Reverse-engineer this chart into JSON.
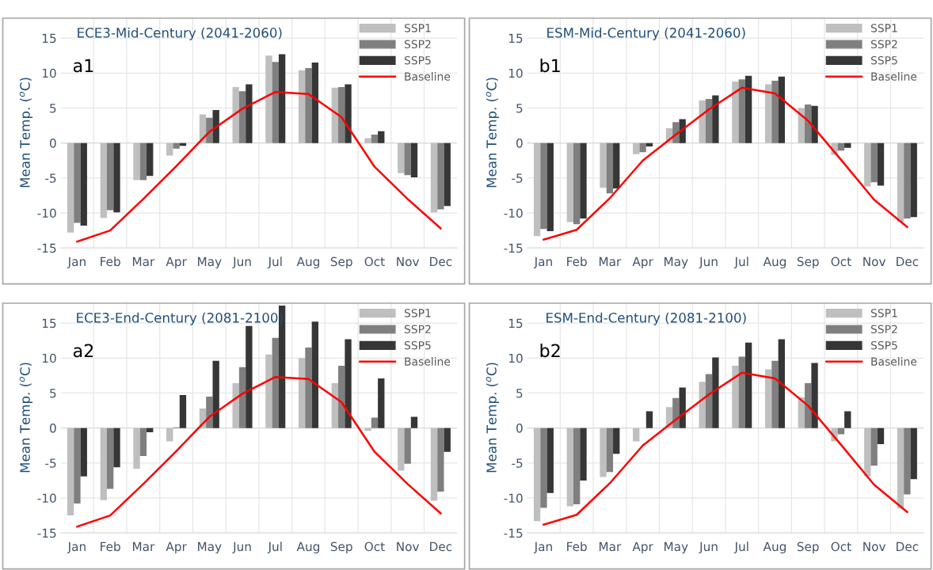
{
  "chart_data": [
    {
      "type": "bar",
      "title": "ECE3-Mid-Century (2041-2060)",
      "ylabel": "Mean Temp. ($^{o}$C)",
      "annotations": [
        "a1"
      ],
      "categories": [
        "Jan",
        "Feb",
        "Mar",
        "Apr",
        "May",
        "Jun",
        "Jul",
        "Aug",
        "Sep",
        "Oct",
        "Nov",
        "Dec"
      ],
      "ylim": [
        -15,
        18
      ],
      "yticks": [
        -15,
        -10,
        -5,
        0,
        5,
        10,
        15
      ],
      "grid": true,
      "legend": "top right",
      "series": [
        {
          "name": "SSP1",
          "color": "#bfbfbf",
          "values": [
            -12.8,
            -10.7,
            -5.3,
            -1.8,
            4.1,
            8.0,
            12.5,
            10.4,
            7.9,
            0.7,
            -4.3,
            -9.9
          ]
        },
        {
          "name": "SSP2",
          "color": "#7f7f7f",
          "values": [
            -11.4,
            -9.6,
            -5.3,
            -0.8,
            3.6,
            7.4,
            11.6,
            10.7,
            8.0,
            1.2,
            -4.6,
            -9.5
          ]
        },
        {
          "name": "SSP5",
          "color": "#363636",
          "values": [
            -11.8,
            -9.9,
            -4.7,
            -0.4,
            4.7,
            8.4,
            12.7,
            11.5,
            8.4,
            1.7,
            -4.9,
            -9.0
          ]
        },
        {
          "name": "Baseline",
          "type": "line",
          "color": "#ff0000",
          "values": [
            -14.1,
            -12.5,
            -8.0,
            -3.3,
            1.6,
            4.9,
            7.3,
            7.0,
            3.7,
            -3.4,
            -8.0,
            -12.2
          ]
        }
      ]
    },
    {
      "type": "bar",
      "title": "ESM-Mid-Century (2041-2060)",
      "ylabel": "Mean Temp. ($^{o}$C)",
      "annotations": [
        "b1"
      ],
      "categories": [
        "Jan",
        "Feb",
        "Mar",
        "Apr",
        "May",
        "Jun",
        "Jul",
        "Aug",
        "Sep",
        "Oct",
        "Nov",
        "Dec"
      ],
      "ylim": [
        -15,
        18
      ],
      "yticks": [
        -15,
        -10,
        -5,
        0,
        5,
        10,
        15
      ],
      "grid": true,
      "legend": "top right",
      "series": [
        {
          "name": "SSP1",
          "color": "#bfbfbf",
          "values": [
            -13.3,
            -11.3,
            -6.4,
            -1.6,
            2.1,
            6.1,
            8.8,
            8.4,
            5.0,
            -1.7,
            -6.2,
            -11.3
          ]
        },
        {
          "name": "SSP2",
          "color": "#7f7f7f",
          "values": [
            -12.3,
            -11.6,
            -7.2,
            -1.3,
            3.0,
            6.3,
            9.1,
            8.9,
            5.5,
            -1.1,
            -5.6,
            -10.8
          ]
        },
        {
          "name": "SSP5",
          "color": "#363636",
          "values": [
            -12.6,
            -10.8,
            -6.5,
            -0.5,
            3.4,
            6.8,
            9.6,
            9.5,
            5.3,
            -0.7,
            -6.1,
            -10.6
          ]
        },
        {
          "name": "Baseline",
          "type": "line",
          "color": "#ff0000",
          "values": [
            -13.8,
            -12.4,
            -7.9,
            -2.5,
            1.2,
            4.8,
            7.9,
            7.1,
            3.2,
            -2.4,
            -8.1,
            -12.0
          ]
        }
      ]
    },
    {
      "type": "bar",
      "title": "ECE3-End-Century (2081-2100)",
      "ylabel": "Mean Temp. ($^{o}$C)",
      "annotations": [
        "a2"
      ],
      "categories": [
        "Jan",
        "Feb",
        "Mar",
        "Apr",
        "May",
        "Jun",
        "Jul",
        "Aug",
        "Sep",
        "Oct",
        "Nov",
        "Dec"
      ],
      "ylim": [
        -15,
        18
      ],
      "yticks": [
        -15,
        -10,
        -5,
        0,
        5,
        10,
        15
      ],
      "grid": true,
      "legend": "top right",
      "series": [
        {
          "name": "SSP1",
          "color": "#bfbfbf",
          "values": [
            -12.5,
            -10.3,
            -5.8,
            -1.9,
            2.8,
            6.4,
            10.5,
            10.0,
            6.4,
            -0.4,
            -6.1,
            -10.4
          ]
        },
        {
          "name": "SSP2",
          "color": "#7f7f7f",
          "values": [
            -10.8,
            -8.7,
            -4.0,
            0.1,
            4.5,
            8.7,
            12.9,
            11.5,
            8.9,
            1.5,
            -5.1,
            -9.1
          ]
        },
        {
          "name": "SSP5",
          "color": "#363636",
          "values": [
            -6.9,
            -5.6,
            -0.6,
            4.7,
            9.6,
            14.6,
            17.5,
            15.2,
            12.7,
            7.1,
            1.6,
            -3.4
          ]
        },
        {
          "name": "Baseline",
          "type": "line",
          "color": "#ff0000",
          "values": [
            -14.1,
            -12.5,
            -8.0,
            -3.3,
            1.6,
            4.9,
            7.3,
            7.0,
            3.7,
            -3.4,
            -8.0,
            -12.2
          ]
        }
      ]
    },
    {
      "type": "bar",
      "title": "ESM-End-Century (2081-2100)",
      "ylabel": "Mean Temp. ($^{o}$C)",
      "annotations": [
        "b2"
      ],
      "categories": [
        "Jan",
        "Feb",
        "Mar",
        "Apr",
        "May",
        "Jun",
        "Jul",
        "Aug",
        "Sep",
        "Oct",
        "Nov",
        "Dec"
      ],
      "ylim": [
        -15,
        18
      ],
      "yticks": [
        -15,
        -10,
        -5,
        0,
        5,
        10,
        15
      ],
      "grid": true,
      "legend": "top right",
      "series": [
        {
          "name": "SSP1",
          "color": "#bfbfbf",
          "values": [
            -13.3,
            -11.2,
            -7.0,
            -1.9,
            3.0,
            6.6,
            8.9,
            8.4,
            4.4,
            -1.9,
            -6.9,
            -11.5
          ]
        },
        {
          "name": "SSP2",
          "color": "#7f7f7f",
          "values": [
            -11.4,
            -10.9,
            -6.3,
            0.0,
            4.3,
            7.7,
            10.2,
            9.6,
            6.4,
            -0.9,
            -5.4,
            -9.5
          ]
        },
        {
          "name": "SSP5",
          "color": "#363636",
          "values": [
            -9.3,
            -7.5,
            -3.7,
            2.4,
            5.8,
            10.1,
            12.2,
            12.7,
            9.3,
            2.4,
            -2.3,
            -7.3
          ]
        },
        {
          "name": "Baseline",
          "type": "line",
          "color": "#ff0000",
          "values": [
            -13.8,
            -12.4,
            -7.9,
            -2.5,
            1.2,
            4.8,
            7.9,
            7.1,
            3.2,
            -2.4,
            -8.1,
            -12.0
          ]
        }
      ]
    }
  ]
}
